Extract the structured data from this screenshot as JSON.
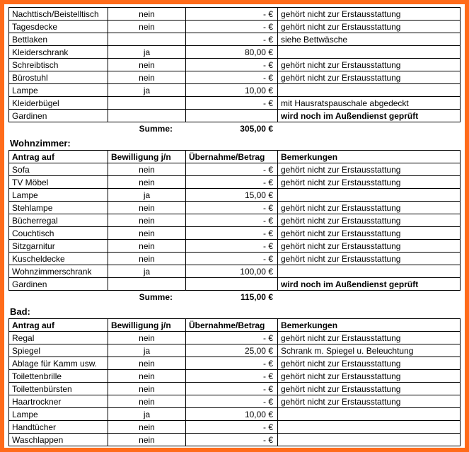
{
  "euro": "€",
  "dash": "-",
  "headers": {
    "item": "Antrag auf",
    "bew": "Bewilligung  j/n",
    "betrag": "Übernahme/Betrag",
    "bem": "Bemerkungen"
  },
  "sum_label": "Summe:",
  "sections": {
    "top": {
      "rows": [
        {
          "item": "Nachttisch/Beistelltisch",
          "bew": "nein",
          "betrag": "-   €",
          "bem": "gehört nicht zur Erstausstattung"
        },
        {
          "item": "Tagesdecke",
          "bew": "nein",
          "betrag": "-   €",
          "bem": "gehört nicht zur Erstausstattung"
        },
        {
          "item": "Bettlaken",
          "bew": "",
          "betrag": "-   €",
          "bem": "siehe Bettwäsche"
        },
        {
          "item": "Kleiderschrank",
          "bew": "ja",
          "betrag": "80,00 €",
          "bem": ""
        },
        {
          "item": "Schreibtisch",
          "bew": "nein",
          "betrag": "-   €",
          "bem": "gehört nicht zur Erstausstattung"
        },
        {
          "item": "Bürostuhl",
          "bew": "nein",
          "betrag": "-   €",
          "bem": "gehört nicht zur Erstausstattung"
        },
        {
          "item": "Lampe",
          "bew": "ja",
          "betrag": "10,00 €",
          "bem": ""
        },
        {
          "item": "Kleiderbügel",
          "bew": "",
          "betrag": "-   €",
          "bem": "mit Hausratspauschale abgedeckt"
        },
        {
          "item": "Gardinen",
          "bew": "",
          "betrag": "",
          "bem": "wird noch im Außendienst geprüft",
          "bembold": true
        }
      ],
      "sum": "305,00 €"
    },
    "wohnzimmer": {
      "title": "Wohnzimmer:",
      "rows": [
        {
          "item": "Sofa",
          "bew": "nein",
          "betrag": "-   €",
          "bem": "gehört nicht zur Erstausstattung"
        },
        {
          "item": "TV Möbel",
          "bew": "nein",
          "betrag": "-   €",
          "bem": "gehört nicht zur Erstausstattung"
        },
        {
          "item": "Lampe",
          "bew": "ja",
          "betrag": "15,00 €",
          "bem": ""
        },
        {
          "item": "Stehlampe",
          "bew": "nein",
          "betrag": "-   €",
          "bem": "gehört nicht zur Erstausstattung"
        },
        {
          "item": "Bücherregal",
          "bew": "nein",
          "betrag": "-   €",
          "bem": "gehört nicht zur Erstausstattung"
        },
        {
          "item": "Couchtisch",
          "bew": "nein",
          "betrag": "-   €",
          "bem": "gehört nicht zur Erstausstattung"
        },
        {
          "item": "Sitzgarnitur",
          "bew": "nein",
          "betrag": "-   €",
          "bem": "gehört nicht zur Erstausstattung"
        },
        {
          "item": "Kuscheldecke",
          "bew": "nein",
          "betrag": "-   €",
          "bem": "gehört nicht zur Erstausstattung"
        },
        {
          "item": "Wohnzimmerschrank",
          "bew": "ja",
          "betrag": "100,00 €",
          "bem": ""
        },
        {
          "item": "Gardinen",
          "bew": "",
          "betrag": "",
          "bem": "wird noch im Außendienst geprüft",
          "bembold": true
        }
      ],
      "sum": "115,00 €"
    },
    "bad": {
      "title": "Bad:",
      "rows": [
        {
          "item": "Regal",
          "bew": "nein",
          "betrag": "-   €",
          "bem": "gehört nicht zur Erstausstattung"
        },
        {
          "item": "Spiegel",
          "bew": "ja",
          "betrag": "25,00 €",
          "bem": "Schrank m. Spiegel u. Beleuchtung"
        },
        {
          "item": "Ablage für Kamm usw.",
          "bew": "nein",
          "betrag": "-   €",
          "bem": "gehört nicht zur Erstausstattung"
        },
        {
          "item": "Toilettenbrille",
          "bew": "nein",
          "betrag": "-   €",
          "bem": "gehört nicht zur Erstausstattung"
        },
        {
          "item": "Toilettenbürsten",
          "bew": "nein",
          "betrag": "-   €",
          "bem": "gehört nicht zur Erstausstattung"
        },
        {
          "item": "Haartrockner",
          "bew": "nein",
          "betrag": "-   €",
          "bem": "gehört nicht zur Erstausstattung"
        },
        {
          "item": "Lampe",
          "bew": "ja",
          "betrag": "10,00 €",
          "bem": ""
        },
        {
          "item": "Handtücher",
          "bew": "nein",
          "betrag": "-   €",
          "bem": ""
        },
        {
          "item": "Waschlappen",
          "bew": "nein",
          "betrag": "-   €",
          "bem": ""
        }
      ]
    }
  }
}
